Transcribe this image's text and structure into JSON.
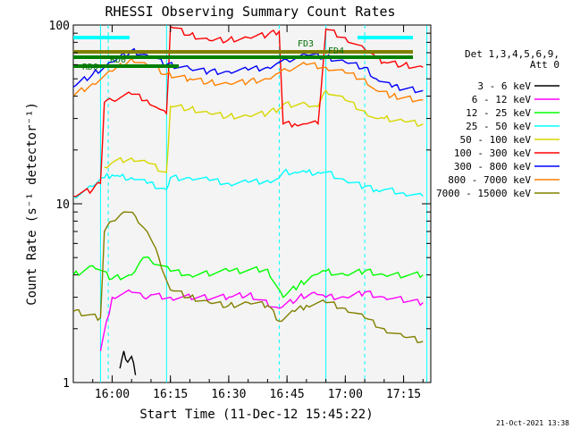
{
  "chart_data": {
    "type": "line",
    "title": "RHESSI Observing Summary Count Rates",
    "xlabel": "Start Time (11-Dec-12 15:45:22)",
    "ylabel": "Count Rate (s⁻¹ detector⁻¹)",
    "y_scale": "log",
    "ylim": [
      1,
      100
    ],
    "xlim": [
      "15:50",
      "17:22"
    ],
    "x_ticks": [
      "16:00",
      "16:15",
      "16:30",
      "16:45",
      "17:00",
      "17:15"
    ],
    "y_ticks": [
      "1",
      "10",
      "100"
    ],
    "legend_header": [
      "Det 1,3,4,5,6,9,",
      "Att 0"
    ],
    "legend_placement": "right",
    "flag_labels": [
      "RD0",
      "FD3",
      "FD4",
      "RD0"
    ],
    "timestamp": "21-Oct-2021 13:38",
    "series": [
      {
        "name": "3 - 6 keV",
        "color": "#000000",
        "t": [
          "16:02",
          "16:03",
          "16:04",
          "16:05",
          "16:06"
        ],
        "values": [
          1.2,
          1.5,
          1.3,
          1.4,
          1.1
        ]
      },
      {
        "name": "6 - 12 keV",
        "color": "#ff00ff",
        "t": [
          "15:57",
          "16:00",
          "16:05",
          "16:08",
          "16:10",
          "16:15",
          "16:30",
          "16:35",
          "16:43",
          "16:48",
          "16:52",
          "16:55",
          "17:00",
          "17:05",
          "17:10",
          "17:20"
        ],
        "values": [
          1.5,
          3.0,
          3.2,
          3.0,
          3.1,
          3.0,
          3.0,
          3.1,
          2.6,
          3.0,
          3.2,
          3.0,
          3.0,
          3.2,
          3.0,
          2.8
        ]
      },
      {
        "name": "12 - 25 keV",
        "color": "#00ff00",
        "t": [
          "15:50",
          "15:55",
          "16:00",
          "16:05",
          "16:08",
          "16:10",
          "16:15",
          "16:20",
          "16:30",
          "16:40",
          "16:44",
          "16:48",
          "16:52",
          "16:55",
          "17:00",
          "17:05",
          "17:10",
          "17:20"
        ],
        "values": [
          4.0,
          4.5,
          3.8,
          4.0,
          5.0,
          4.8,
          4.2,
          4.0,
          4.2,
          4.3,
          3.0,
          3.5,
          4.0,
          4.2,
          4.0,
          4.2,
          4.0,
          4.0
        ]
      },
      {
        "name": "25 - 50 keV",
        "color": "#00ffff",
        "t": [
          "15:50",
          "15:55",
          "15:58",
          "16:00",
          "16:02",
          "16:05",
          "16:09",
          "16:14",
          "16:15",
          "16:20",
          "16:25",
          "16:30",
          "16:35",
          "16:40",
          "16:43",
          "16:44",
          "16:47",
          "16:50",
          "16:53",
          "16:55",
          "17:00",
          "17:05",
          "17:08",
          "17:10",
          "17:15",
          "17:20"
        ],
        "values": [
          11.0,
          12.5,
          14.0,
          14.5,
          14.2,
          14.0,
          13.0,
          12.0,
          14.0,
          14.0,
          13.5,
          13.0,
          13.2,
          13.5,
          14.0,
          15.0,
          15.0,
          15.0,
          15.0,
          15.0,
          13.5,
          12.5,
          12.0,
          12.0,
          11.5,
          11.0
        ]
      },
      {
        "name": "50 - 100 keV",
        "color": "#d7d700",
        "t": [
          "15:58",
          "16:00",
          "16:05",
          "16:09",
          "16:14",
          "16:15",
          "16:20",
          "16:25",
          "16:30",
          "16:35",
          "16:40",
          "16:43",
          "16:44",
          "16:50",
          "16:53",
          "16:55",
          "17:00",
          "17:05",
          "17:08",
          "17:10",
          "17:15",
          "17:20"
        ],
        "values": [
          16.0,
          17.0,
          18.0,
          17.0,
          15.0,
          35.0,
          34.0,
          32.0,
          31.0,
          31.0,
          32.0,
          34.0,
          36.0,
          36.0,
          35.0,
          43.0,
          38.0,
          33.0,
          30.0,
          30.0,
          29.0,
          28.0
        ]
      },
      {
        "name": "100 - 300 keV",
        "color": "#ff0000",
        "t": [
          "15:50",
          "15:55",
          "15:57",
          "15:58",
          "16:00",
          "16:05",
          "16:09",
          "16:12",
          "16:14",
          "16:15",
          "16:20",
          "16:25",
          "16:30",
          "16:35",
          "16:40",
          "16:43",
          "16:44",
          "16:47",
          "16:50",
          "16:53",
          "16:55",
          "17:00",
          "17:05",
          "17:08",
          "17:10",
          "17:15",
          "17:20"
        ],
        "values": [
          11.0,
          12.0,
          13.0,
          37.0,
          38.0,
          41.0,
          38.0,
          34.0,
          32.0,
          98.0,
          88.0,
          82.0,
          83.0,
          85.0,
          88.0,
          92.0,
          28.0,
          28.0,
          28.0,
          28.0,
          95.0,
          85.0,
          73.0,
          65.0,
          62.0,
          60.0,
          58.0
        ]
      },
      {
        "name": "300 - 800 keV",
        "color": "#0000ff",
        "t": [
          "15:50",
          "15:55",
          "16:00",
          "16:05",
          "16:09",
          "16:14",
          "16:20",
          "16:25",
          "16:30",
          "16:35",
          "16:40",
          "16:43",
          "16:45",
          "16:50",
          "16:55",
          "17:00",
          "17:05",
          "17:08",
          "17:12",
          "17:20"
        ],
        "values": [
          45.0,
          53.0,
          62.0,
          72.0,
          68.0,
          60.0,
          57.0,
          55.0,
          55.0,
          56.0,
          58.0,
          62.0,
          64.0,
          68.0,
          66.0,
          62.0,
          58.0,
          50.0,
          45.0,
          43.0
        ]
      },
      {
        "name": "800 - 7000 keV",
        "color": "#ff8000",
        "t": [
          "15:50",
          "15:55",
          "16:00",
          "16:05",
          "16:09",
          "16:14",
          "16:20",
          "16:25",
          "16:30",
          "16:35",
          "16:40",
          "16:43",
          "16:45",
          "16:50",
          "16:55",
          "17:00",
          "17:05",
          "17:08",
          "17:12",
          "17:20"
        ],
        "values": [
          40.0,
          47.0,
          55.0,
          65.0,
          60.0,
          53.0,
          50.0,
          48.0,
          47.0,
          48.0,
          50.0,
          54.0,
          56.0,
          60.0,
          58.0,
          54.0,
          50.0,
          43.0,
          40.0,
          38.0
        ]
      },
      {
        "name": "7000 - 15000 keV",
        "color": "#808000",
        "t": [
          "15:50",
          "15:57",
          "15:58",
          "16:00",
          "16:03",
          "16:06",
          "16:09",
          "16:12",
          "16:15",
          "16:20",
          "16:25",
          "16:30",
          "16:35",
          "16:40",
          "16:43",
          "16:47",
          "16:50",
          "16:55",
          "17:00",
          "17:05",
          "17:10",
          "17:15",
          "17:20"
        ],
        "values": [
          2.5,
          2.3,
          7.0,
          8.0,
          9.0,
          8.5,
          7.0,
          5.0,
          3.3,
          3.0,
          2.8,
          2.7,
          2.8,
          2.7,
          2.2,
          2.5,
          2.7,
          2.8,
          2.6,
          2.3,
          2.0,
          1.8,
          1.7
        ]
      }
    ]
  }
}
